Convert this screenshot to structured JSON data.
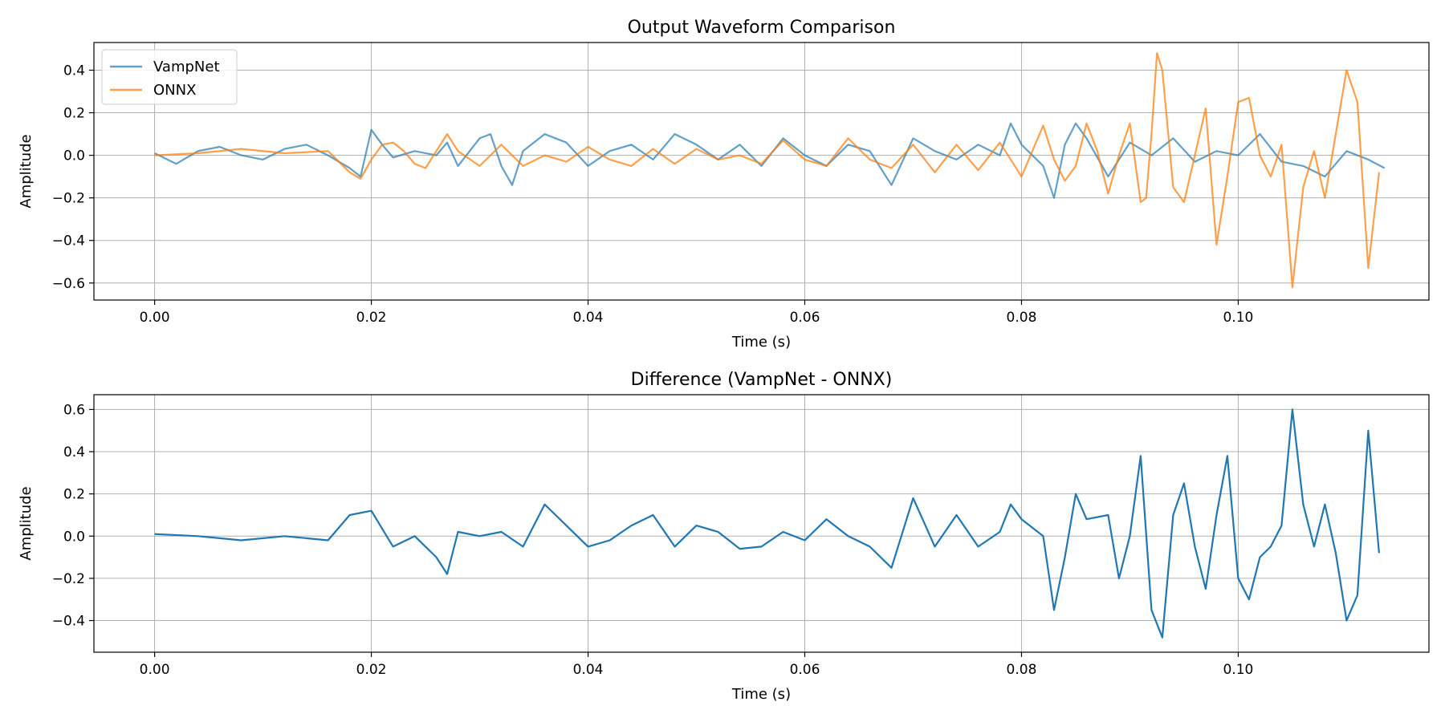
{
  "chart_data": [
    {
      "type": "line",
      "title": "Output Waveform Comparison",
      "xlabel": "Time (s)",
      "ylabel": "Amplitude",
      "xlim": [
        -0.0056,
        0.1176
      ],
      "ylim": [
        -0.68,
        0.53
      ],
      "xticks": [
        0.0,
        0.02,
        0.04,
        0.06,
        0.08,
        0.1
      ],
      "xtick_labels": [
        "0.00",
        "0.02",
        "0.04",
        "0.06",
        "0.08",
        "0.10"
      ],
      "yticks": [
        0.4,
        0.2,
        0.0,
        -0.2,
        -0.4,
        -0.6
      ],
      "ytick_labels": [
        "0.4",
        "0.2",
        "0.0",
        "−0.2",
        "−0.4",
        "−0.6"
      ],
      "grid": true,
      "legend": "top-left",
      "series": [
        {
          "name": "VampNet",
          "color": "#1f77b4",
          "opacity": 0.7,
          "x": [
            0.0,
            0.002,
            0.004,
            0.006,
            0.008,
            0.01,
            0.012,
            0.014,
            0.016,
            0.018,
            0.019,
            0.02,
            0.021,
            0.022,
            0.024,
            0.026,
            0.027,
            0.028,
            0.03,
            0.031,
            0.032,
            0.033,
            0.034,
            0.036,
            0.038,
            0.04,
            0.042,
            0.044,
            0.046,
            0.048,
            0.05,
            0.052,
            0.054,
            0.056,
            0.058,
            0.06,
            0.062,
            0.064,
            0.066,
            0.068,
            0.07,
            0.072,
            0.074,
            0.076,
            0.078,
            0.079,
            0.08,
            0.082,
            0.083,
            0.084,
            0.085,
            0.086,
            0.088,
            0.09,
            0.092,
            0.094,
            0.096,
            0.098,
            0.1,
            0.102,
            0.104,
            0.106,
            0.108,
            0.11,
            0.112,
            0.1135
          ],
          "y": [
            0.01,
            -0.04,
            0.02,
            0.04,
            0.0,
            -0.02,
            0.03,
            0.05,
            0.0,
            -0.06,
            -0.1,
            0.12,
            0.05,
            -0.01,
            0.02,
            0.0,
            0.06,
            -0.05,
            0.08,
            0.1,
            -0.05,
            -0.14,
            0.02,
            0.1,
            0.06,
            -0.05,
            0.02,
            0.05,
            -0.02,
            0.1,
            0.05,
            -0.02,
            0.05,
            -0.05,
            0.08,
            0.0,
            -0.05,
            0.05,
            0.02,
            -0.14,
            0.08,
            0.02,
            -0.02,
            0.05,
            0.0,
            0.15,
            0.05,
            -0.05,
            -0.2,
            0.05,
            0.15,
            0.08,
            -0.1,
            0.06,
            0.0,
            0.08,
            -0.03,
            0.02,
            0.0,
            0.1,
            -0.03,
            -0.05,
            -0.1,
            0.02,
            -0.02,
            -0.06
          ]
        },
        {
          "name": "ONNX",
          "color": "#ff7f0e",
          "opacity": 0.75,
          "x": [
            0.0,
            0.004,
            0.008,
            0.012,
            0.016,
            0.018,
            0.019,
            0.02,
            0.021,
            0.022,
            0.023,
            0.024,
            0.025,
            0.026,
            0.027,
            0.028,
            0.03,
            0.032,
            0.034,
            0.036,
            0.038,
            0.04,
            0.042,
            0.044,
            0.046,
            0.048,
            0.05,
            0.052,
            0.054,
            0.056,
            0.058,
            0.06,
            0.062,
            0.064,
            0.066,
            0.068,
            0.07,
            0.072,
            0.074,
            0.076,
            0.078,
            0.08,
            0.082,
            0.083,
            0.084,
            0.085,
            0.086,
            0.087,
            0.088,
            0.089,
            0.09,
            0.091,
            0.0915,
            0.092,
            0.0925,
            0.093,
            0.094,
            0.095,
            0.096,
            0.097,
            0.098,
            0.099,
            0.1,
            0.101,
            0.102,
            0.103,
            0.104,
            0.105,
            0.106,
            0.107,
            0.108,
            0.109,
            0.11,
            0.111,
            0.112,
            0.113
          ],
          "y": [
            0.0,
            0.01,
            0.03,
            0.01,
            0.02,
            -0.08,
            -0.11,
            -0.02,
            0.05,
            0.06,
            0.02,
            -0.04,
            -0.06,
            0.02,
            0.1,
            0.02,
            -0.05,
            0.05,
            -0.05,
            0.0,
            -0.03,
            0.04,
            -0.02,
            -0.05,
            0.03,
            -0.04,
            0.03,
            -0.02,
            0.0,
            -0.04,
            0.07,
            -0.02,
            -0.05,
            0.08,
            -0.02,
            -0.06,
            0.05,
            -0.08,
            0.05,
            -0.07,
            0.06,
            -0.1,
            0.14,
            -0.02,
            -0.12,
            -0.05,
            0.15,
            0.02,
            -0.18,
            0.0,
            0.15,
            -0.22,
            -0.2,
            0.1,
            0.48,
            0.4,
            -0.15,
            -0.22,
            0.0,
            0.22,
            -0.42,
            -0.1,
            0.25,
            0.27,
            0.0,
            -0.1,
            0.05,
            -0.62,
            -0.15,
            0.02,
            -0.2,
            0.1,
            0.4,
            0.25,
            -0.53,
            -0.08
          ]
        }
      ]
    },
    {
      "type": "line",
      "title": "Difference (VampNet - ONNX)",
      "xlabel": "Time (s)",
      "ylabel": "Amplitude",
      "xlim": [
        -0.0056,
        0.1176
      ],
      "ylim": [
        -0.55,
        0.67
      ],
      "xticks": [
        0.0,
        0.02,
        0.04,
        0.06,
        0.08,
        0.1
      ],
      "xtick_labels": [
        "0.00",
        "0.02",
        "0.04",
        "0.06",
        "0.08",
        "0.10"
      ],
      "yticks": [
        0.6,
        0.4,
        0.2,
        0.0,
        -0.2,
        -0.4
      ],
      "ytick_labels": [
        "0.6",
        "0.4",
        "0.2",
        "0.0",
        "−0.2",
        "−0.4"
      ],
      "grid": true,
      "series": [
        {
          "color": "#1f77b4",
          "opacity": 1.0,
          "x": [
            0.0,
            0.004,
            0.008,
            0.012,
            0.016,
            0.018,
            0.02,
            0.022,
            0.024,
            0.026,
            0.027,
            0.028,
            0.03,
            0.032,
            0.034,
            0.036,
            0.038,
            0.04,
            0.042,
            0.044,
            0.046,
            0.048,
            0.05,
            0.052,
            0.054,
            0.056,
            0.058,
            0.06,
            0.062,
            0.064,
            0.066,
            0.068,
            0.07,
            0.072,
            0.074,
            0.076,
            0.078,
            0.079,
            0.08,
            0.082,
            0.083,
            0.084,
            0.085,
            0.086,
            0.088,
            0.089,
            0.09,
            0.091,
            0.092,
            0.093,
            0.094,
            0.095,
            0.096,
            0.097,
            0.098,
            0.099,
            0.1,
            0.101,
            0.102,
            0.103,
            0.104,
            0.105,
            0.106,
            0.107,
            0.108,
            0.109,
            0.11,
            0.111,
            0.112,
            0.113
          ],
          "y": [
            0.01,
            0.0,
            -0.02,
            0.0,
            -0.02,
            0.1,
            0.12,
            -0.05,
            0.0,
            -0.1,
            -0.18,
            0.02,
            0.0,
            0.02,
            -0.05,
            0.15,
            0.05,
            -0.05,
            -0.02,
            0.05,
            0.1,
            -0.05,
            0.05,
            0.02,
            -0.06,
            -0.05,
            0.02,
            -0.02,
            0.08,
            0.0,
            -0.05,
            -0.15,
            0.18,
            -0.05,
            0.1,
            -0.05,
            0.02,
            0.15,
            0.08,
            0.0,
            -0.35,
            -0.1,
            0.2,
            0.08,
            0.1,
            -0.2,
            0.0,
            0.38,
            -0.35,
            -0.48,
            0.1,
            0.25,
            -0.05,
            -0.25,
            0.1,
            0.38,
            -0.2,
            -0.3,
            -0.1,
            -0.05,
            0.05,
            0.6,
            0.15,
            -0.05,
            0.15,
            -0.08,
            -0.4,
            -0.28,
            0.5,
            -0.08
          ]
        }
      ]
    }
  ]
}
